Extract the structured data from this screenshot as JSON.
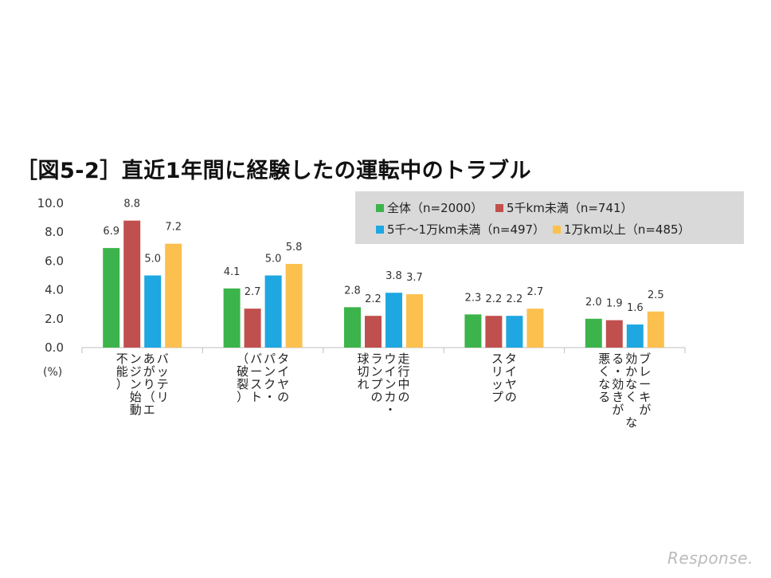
{
  "title": "［図5-2］直近1年間に経験したの運転中のトラブル",
  "unit_label": "(%)",
  "logo": "Response.",
  "chart_data": {
    "type": "bar",
    "title": "［図5-2］直近1年間に経験したの運転中のトラブル",
    "ylim": [
      0,
      10
    ],
    "yticks": [
      "0.0",
      "2.0",
      "4.0",
      "6.0",
      "8.0",
      "10.0"
    ],
    "grid": false,
    "legend_position": "top-right",
    "categories": [
      [
        "バッテリ",
        "あがり（エ",
        "ンジン始動",
        "不能）"
      ],
      [
        "タイヤの",
        "パンク・",
        "バースト",
        "（破裂）"
      ],
      [
        "走行中の",
        "ウインカ・",
        "ランプの",
        "球切れ"
      ],
      [
        "タイヤの",
        "スリップ"
      ],
      [
        "ブレーキが",
        "効かなく な",
        "る・効きが",
        "悪くなる"
      ]
    ],
    "series": [
      {
        "name": "全体（n=2000）",
        "color": "#3cb44b",
        "values": [
          6.9,
          4.1,
          2.8,
          2.3,
          2.0
        ]
      },
      {
        "name": "5千km未満（n=741）",
        "color": "#c0504d",
        "values": [
          8.8,
          2.7,
          2.2,
          2.2,
          1.9
        ]
      },
      {
        "name": "5千～1万km未満（n=497）",
        "color": "#1ea7e1",
        "values": [
          5.0,
          5.0,
          3.8,
          2.2,
          1.6
        ]
      },
      {
        "name": "1万km以上（n=485）",
        "color": "#fcc04f",
        "values": [
          7.2,
          5.8,
          3.7,
          2.7,
          2.5
        ]
      }
    ]
  }
}
